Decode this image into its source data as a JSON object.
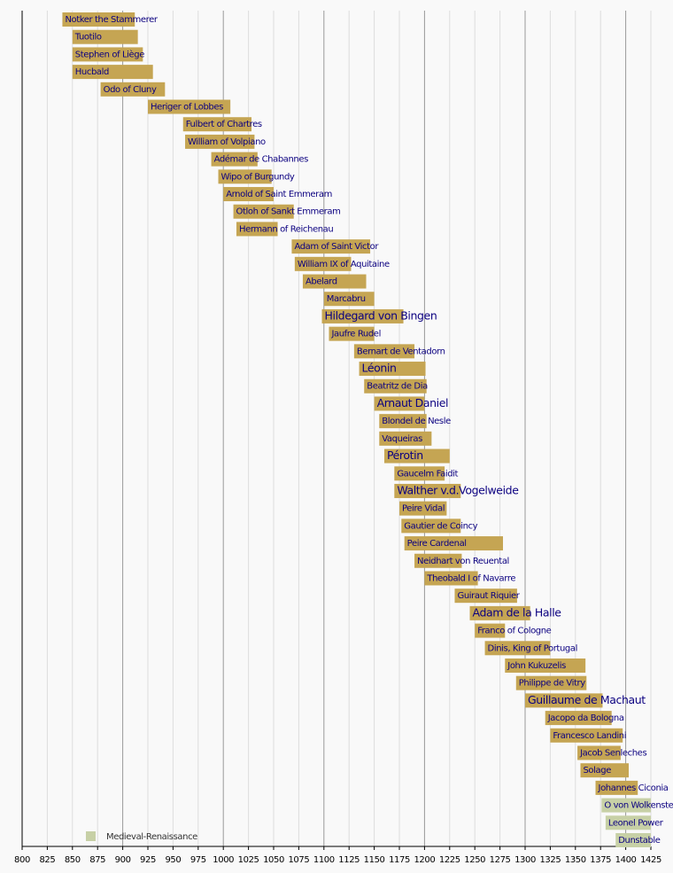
{
  "chart_data": {
    "type": "timeline",
    "xlim": [
      800,
      1425
    ],
    "xticks": [
      800,
      825,
      850,
      875,
      900,
      925,
      950,
      975,
      1000,
      1025,
      1050,
      1075,
      1100,
      1125,
      1150,
      1175,
      1200,
      1225,
      1250,
      1275,
      1300,
      1325,
      1350,
      1375,
      1400,
      1425
    ],
    "grid": true,
    "bar_color": "#c5a553",
    "label_color": "#0b0080",
    "legend": {
      "label": "Medieval-Renaissance",
      "color": "#c7d0a6",
      "position": "lower left"
    },
    "items": [
      {
        "name": "Notker the Stammerer",
        "start": 840,
        "end": 912
      },
      {
        "name": "Tuotilo",
        "start": 850,
        "end": 915
      },
      {
        "name": "Stephen of Liège",
        "start": 850,
        "end": 920
      },
      {
        "name": "Hucbald",
        "start": 850,
        "end": 930
      },
      {
        "name": "Odo of Cluny",
        "start": 878,
        "end": 942
      },
      {
        "name": "Heriger of Lobbes",
        "start": 925,
        "end": 1007
      },
      {
        "name": "Fulbert of Chartres",
        "start": 960,
        "end": 1028
      },
      {
        "name": "William of Volpiano",
        "start": 962,
        "end": 1031
      },
      {
        "name": "Adémar de Chabannes",
        "start": 988,
        "end": 1034
      },
      {
        "name": "Wipo of Burgundy",
        "start": 995,
        "end": 1048
      },
      {
        "name": "Arnold of Saint Emmeram",
        "start": 1000,
        "end": 1050
      },
      {
        "name": "Otloh of Sankt Emmeram",
        "start": 1010,
        "end": 1070
      },
      {
        "name": "Hermann of Reichenau",
        "start": 1013,
        "end": 1054
      },
      {
        "name": "Adam of Saint Victor",
        "start": 1068,
        "end": 1146
      },
      {
        "name": "William IX of Aquitaine",
        "start": 1071,
        "end": 1127
      },
      {
        "name": "Abelard",
        "start": 1079,
        "end": 1142
      },
      {
        "name": "Marcabru",
        "start": 1100,
        "end": 1150
      },
      {
        "name": "Hildegard von Bingen",
        "start": 1098,
        "end": 1179,
        "highlight": true
      },
      {
        "name": "Jaufre Rudel",
        "start": 1105,
        "end": 1150
      },
      {
        "name": "Bernart de Ventadorn",
        "start": 1130,
        "end": 1190
      },
      {
        "name": "Léonin",
        "start": 1135,
        "end": 1201,
        "highlight": true
      },
      {
        "name": "Beatritz de Dia",
        "start": 1140,
        "end": 1202
      },
      {
        "name": "Arnaut Daniel",
        "start": 1150,
        "end": 1200,
        "highlight": true
      },
      {
        "name": "Blondel de Nesle",
        "start": 1155,
        "end": 1202
      },
      {
        "name": "Vaqueiras",
        "start": 1155,
        "end": 1207
      },
      {
        "name": "Pérotin",
        "start": 1160,
        "end": 1225,
        "highlight": true
      },
      {
        "name": "Gaucelm Faidit",
        "start": 1170,
        "end": 1220
      },
      {
        "name": "Walther v.d.Vogelweide",
        "start": 1170,
        "end": 1236,
        "highlight": true
      },
      {
        "name": "Peire Vidal",
        "start": 1175,
        "end": 1222
      },
      {
        "name": "Gautier de Coincy",
        "start": 1177,
        "end": 1236
      },
      {
        "name": "Peire Cardenal",
        "start": 1180,
        "end": 1278
      },
      {
        "name": "Neidhart von Reuental",
        "start": 1190,
        "end": 1237
      },
      {
        "name": "Theobald I of Navarre",
        "start": 1200,
        "end": 1253
      },
      {
        "name": "Guiraut Riquier",
        "start": 1230,
        "end": 1292
      },
      {
        "name": "Adam de la Halle",
        "start": 1245,
        "end": 1305,
        "highlight": true
      },
      {
        "name": "Franco of Cologne",
        "start": 1250,
        "end": 1280
      },
      {
        "name": "Dinis, King of Portugal",
        "start": 1260,
        "end": 1325
      },
      {
        "name": "John Kukuzelis",
        "start": 1280,
        "end": 1360
      },
      {
        "name": "Philippe de Vitry",
        "start": 1291,
        "end": 1361
      },
      {
        "name": "Guillaume de Machaut",
        "start": 1300,
        "end": 1377,
        "highlight": true
      },
      {
        "name": "Jacopo da Bologna",
        "start": 1320,
        "end": 1386
      },
      {
        "name": "Francesco Landini",
        "start": 1325,
        "end": 1397
      },
      {
        "name": "Jacob Senleches",
        "start": 1352,
        "end": 1395
      },
      {
        "name": "Solage",
        "start": 1355,
        "end": 1403
      },
      {
        "name": "Johannes Ciconia",
        "start": 1370,
        "end": 1412
      },
      {
        "name": "O von Wolkenstein",
        "start": 1376,
        "end": 1425,
        "color": "#c7d0a6"
      },
      {
        "name": "Leonel Power",
        "start": 1380,
        "end": 1425,
        "color": "#c7d0a6"
      },
      {
        "name": "Dunstable",
        "start": 1390,
        "end": 1425,
        "color": "#c7d0a6"
      }
    ]
  }
}
